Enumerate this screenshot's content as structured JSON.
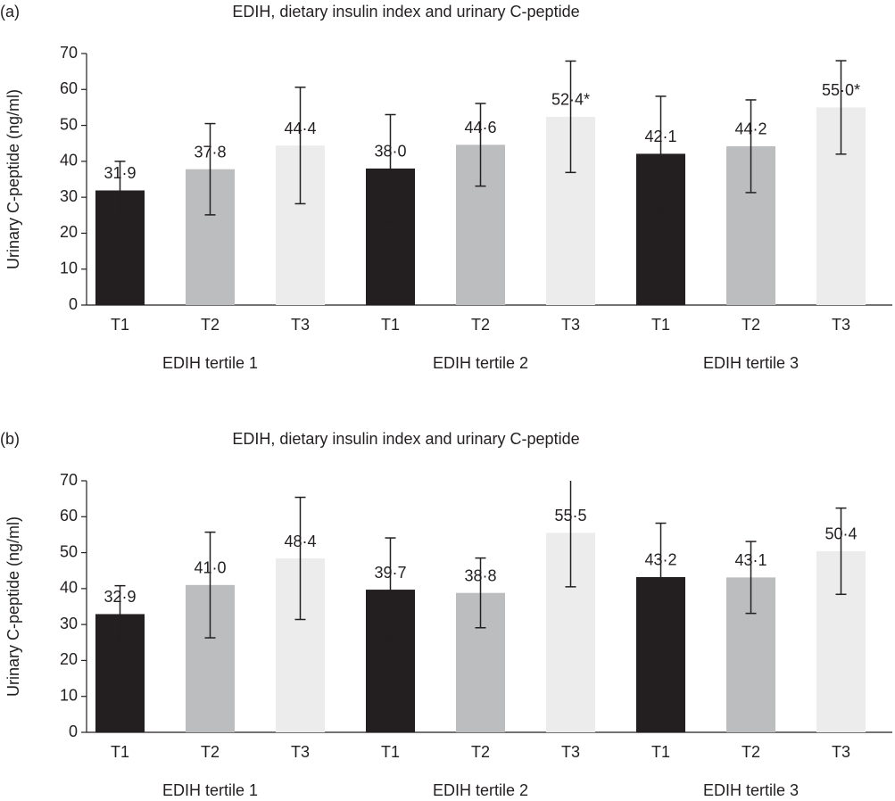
{
  "chart_data": [
    {
      "type": "bar",
      "panel_label": "(a)",
      "title": "EDIH, dietary insulin index and urinary C-peptide",
      "y_label": "Urinary C-peptide (ng/ml)",
      "categories": [
        "T1",
        "T2",
        "T3",
        "T1",
        "T2",
        "T3",
        "T1",
        "T2",
        "T3"
      ],
      "groups": [
        "EDIH tertile 1",
        "EDIH tertile 2",
        "EDIH tertile 3"
      ],
      "values": [
        31.9,
        37.8,
        44.4,
        38.0,
        44.6,
        52.4,
        42.1,
        44.2,
        55.0
      ],
      "value_labels": [
        "31·9",
        "37·8",
        "44·4",
        "38·0",
        "44·6",
        "52·4*",
        "42·1",
        "44·2",
        "55·0*"
      ],
      "errors": [
        8.1,
        12.7,
        16.2,
        15,
        11.5,
        15.5,
        16,
        12.9,
        13
      ],
      "colors": [
        "#231f20",
        "#bcbdbf",
        "#ececec"
      ],
      "ylim": [
        0,
        70
      ],
      "yticks": [
        0,
        10,
        20,
        30,
        40,
        50,
        60,
        70
      ]
    },
    {
      "type": "bar",
      "panel_label": "(b)",
      "title": "EDIH, dietary insulin index and urinary C-peptide",
      "y_label": "Urinary C-peptide (ng/ml)",
      "categories": [
        "T1",
        "T2",
        "T3",
        "T1",
        "T2",
        "T3",
        "T1",
        "T2",
        "T3"
      ],
      "groups": [
        "EDIH tertile 1",
        "EDIH tertile 2",
        "EDIH tertile 3"
      ],
      "values": [
        32.9,
        41.0,
        48.4,
        39.7,
        38.8,
        55.5,
        43.2,
        43.1,
        50.4
      ],
      "value_labels": [
        "32·9",
        "41·0",
        "48·4",
        "39·7",
        "38·8",
        "55·5",
        "43·2",
        "43·1",
        "50·4"
      ],
      "errors": [
        7.9,
        14.7,
        17,
        14.4,
        9.7,
        15,
        15,
        10,
        12
      ],
      "colors": [
        "#231f20",
        "#bcbdbf",
        "#ececec"
      ],
      "ylim": [
        0,
        70
      ],
      "yticks": [
        0,
        10,
        20,
        30,
        40,
        50,
        60,
        70
      ]
    }
  ]
}
